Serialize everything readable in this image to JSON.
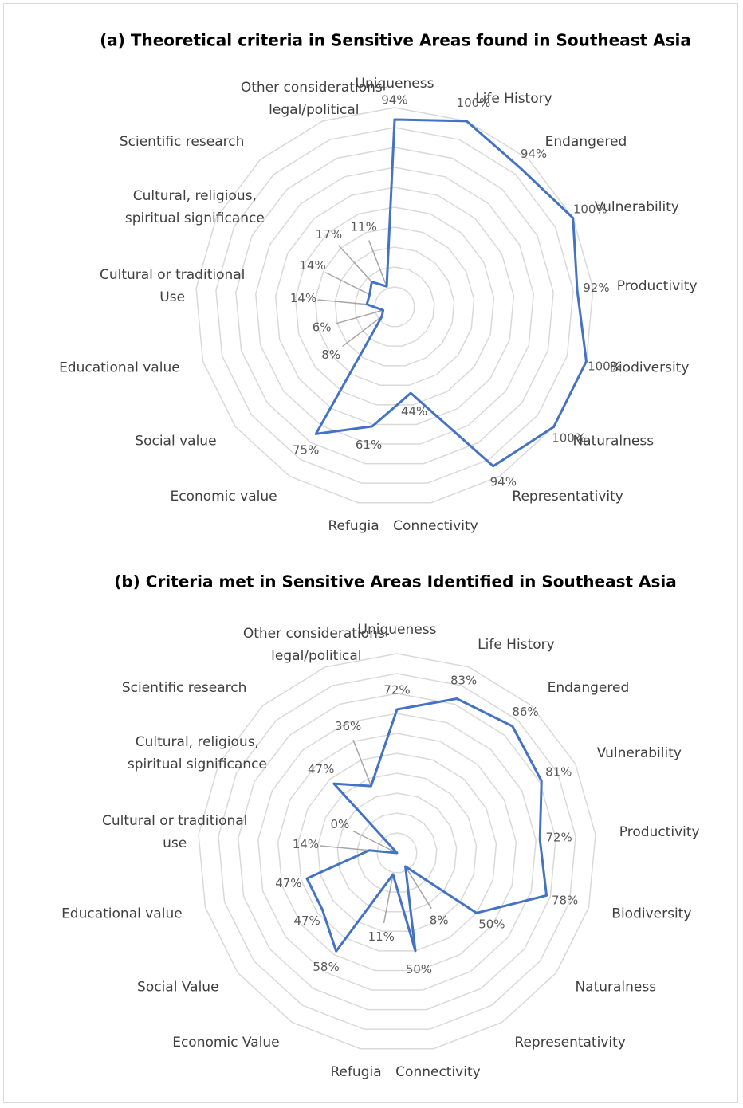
{
  "chart_data": [
    {
      "type": "radar",
      "title": "(a) Theoretical criteria in Sensitive Areas found in Southeast Asia",
      "categories": [
        "Uniqueness",
        "Life History",
        "Endangered",
        "Vulnerability",
        "Productivity",
        "Biodiversity",
        "Naturalness",
        "Representativity",
        "Connectivity",
        "Refugia",
        "Economic value",
        "Social value",
        "Educational value",
        [
          "Cultural or traditional",
          "Use"
        ],
        [
          "Cultural, religious,",
          "spiritual significance"
        ],
        "Scientific research",
        [
          "Other considerations-",
          "legal/political"
        ]
      ],
      "values": [
        94,
        100,
        94,
        100,
        92,
        100,
        100,
        94,
        44,
        61,
        75,
        8,
        6,
        14,
        14,
        17,
        11
      ],
      "value_labels": [
        "94%",
        "100%",
        "94%",
        "100%",
        "92%",
        "100%",
        "100%",
        "94%",
        "44%",
        "61%",
        "75%",
        "8%",
        "6%",
        "14%",
        "14%",
        "17%",
        "11%"
      ],
      "color": "#4472c4",
      "rlim": [
        0,
        100
      ],
      "rticks": [
        0,
        10,
        20,
        30,
        40,
        50,
        60,
        70,
        80,
        90,
        100
      ]
    },
    {
      "type": "radar",
      "title": "(b) Criteria met in Sensitive Areas Identified in Southeast Asia",
      "categories": [
        "Uniqueness",
        "Life History",
        "Endangered",
        "Vulnerability",
        "Productivity",
        "Biodiversity",
        "Naturalness",
        "Representativity",
        "Connectivity",
        "Refugia",
        "Economic  Value",
        "Social Value",
        "Educational value",
        [
          "Cultural or traditional",
          "use"
        ],
        [
          "Cultural, religious,",
          "spiritual significance"
        ],
        "Scientific research",
        [
          "Other considerations-",
          "legal/political"
        ]
      ],
      "values": [
        72,
        83,
        86,
        81,
        72,
        78,
        50,
        8,
        50,
        11,
        58,
        47,
        47,
        14,
        0,
        47,
        36
      ],
      "value_labels": [
        "72%",
        "83%",
        "86%",
        "81%",
        "72%",
        "78%",
        "50%",
        "8%",
        "50%",
        "11%",
        "58%",
        "47%",
        "47%",
        "14%",
        "0%",
        "47%",
        "36%"
      ],
      "color": "#4472c4",
      "rlim": [
        0,
        100
      ],
      "rticks": [
        0,
        10,
        20,
        30,
        40,
        50,
        60,
        70,
        80,
        90,
        100
      ]
    }
  ]
}
